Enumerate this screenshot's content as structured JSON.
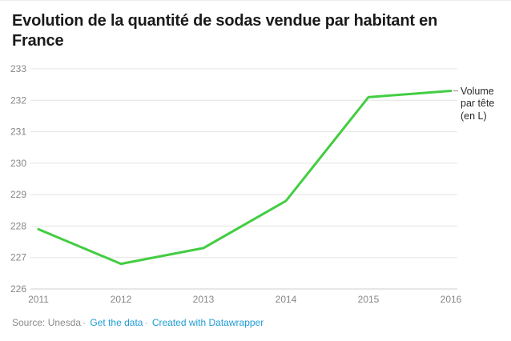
{
  "title": "Evolution de la quantité de sodas vendue par habitant en France",
  "footer": {
    "source_label": "Source:",
    "source_value": "Unesda",
    "separator": "·",
    "get_data_label": "Get the data",
    "credit_label": "Created with Datawrapper"
  },
  "colors": {
    "line": "#43cd43",
    "link": "#1e9cd6",
    "grid": "#e4e4e4",
    "baseline": "#cfcfcf",
    "tick_text": "#878787",
    "connector": "#9a9a9a"
  },
  "chart_data": {
    "type": "line",
    "x": [
      2011,
      2012,
      2013,
      2014,
      2015,
      2016
    ],
    "series": [
      {
        "name": "Volume par tête (en L)",
        "values": [
          227.9,
          226.8,
          227.3,
          228.8,
          232.1,
          232.3
        ]
      }
    ],
    "title": "Evolution de la quantité de sodas vendue par habitant en France",
    "xlabel": "",
    "ylabel": "",
    "ylim": [
      226,
      233
    ],
    "yticks": [
      226,
      227,
      228,
      229,
      230,
      231,
      232,
      233
    ],
    "grid": true,
    "legend_position": "right-of-line-end",
    "annotation": "Volume par tête (en L)"
  }
}
